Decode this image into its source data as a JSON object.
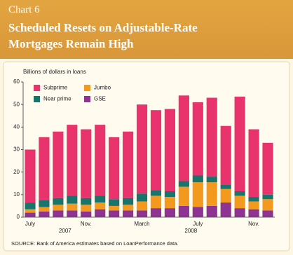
{
  "chart_data": {
    "type": "stacked-bar",
    "chart_label": "Chart 6",
    "title": "Scheduled Resets on Adjustable-Rate Mortgages Remain High",
    "ylabel": "Billions of dollars in loans",
    "source": "SOURCE: Bank of America estimates based on LoanPerformance data.",
    "categories": [
      "July",
      null,
      null,
      null,
      "Nov.",
      null,
      null,
      null,
      "March",
      null,
      null,
      null,
      "July",
      null,
      null,
      null,
      "Nov.",
      null
    ],
    "years": [
      null,
      null,
      "2007",
      null,
      null,
      null,
      null,
      null,
      null,
      null,
      null,
      "2008",
      null,
      null,
      null,
      null,
      null,
      null
    ],
    "series": [
      {
        "name": "GSE",
        "color": "#8e3391",
        "values": [
          2,
          2.5,
          3,
          3,
          2.5,
          3.5,
          3,
          3,
          3,
          4,
          4,
          5,
          4.5,
          5,
          6.5,
          4,
          3.5,
          3
        ]
      },
      {
        "name": "Jumbo",
        "color": "#f39a1e",
        "values": [
          1.5,
          2,
          2.5,
          3,
          3,
          3,
          2,
          2.5,
          4,
          5.5,
          5,
          8.5,
          11,
          10.5,
          6,
          5.5,
          3.5,
          5
        ]
      },
      {
        "name": "Near prime",
        "color": "#17756c",
        "values": [
          3,
          3,
          3,
          3.5,
          3,
          3,
          3,
          3,
          3.5,
          2.5,
          2.5,
          2.5,
          3,
          2.5,
          2,
          2,
          2,
          2
        ]
      },
      {
        "name": "Subprime",
        "color": "#e8336c",
        "values": [
          23.5,
          28,
          29.5,
          31.5,
          30.5,
          31.5,
          27.5,
          29.5,
          39.5,
          35.5,
          36.5,
          38,
          32.5,
          35,
          26,
          42,
          30,
          23
        ]
      }
    ],
    "ylim": [
      0,
      60
    ],
    "yticks": [
      0,
      10,
      20,
      30,
      40,
      50,
      60
    ],
    "legend": "top-left"
  }
}
